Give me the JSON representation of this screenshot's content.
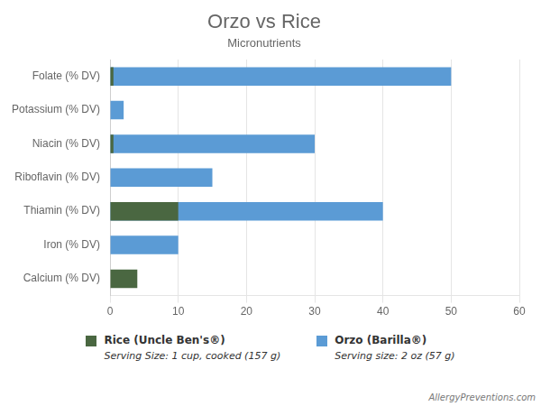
{
  "chart_data": {
    "type": "bar",
    "orientation": "horizontal",
    "title": "Orzo vs Rice",
    "subtitle": "Micronutrients",
    "categories": [
      "Folate (% DV)",
      "Potassium (% DV)",
      "Niacin (% DV)",
      "Riboflavin (% DV)",
      "Thiamin (% DV)",
      "Iron (% DV)",
      "Calcium (% DV)"
    ],
    "series": [
      {
        "name": "Rice (Uncle Ben's®)",
        "color": "#4a6741",
        "values": [
          0.5,
          0,
          0.5,
          0,
          10,
          0,
          4
        ],
        "annotation": "Serving Size: 1 cup, cooked (157 g)"
      },
      {
        "name": "Orzo (Barilla®)",
        "color": "#5b9bd5",
        "values": [
          50,
          2,
          30,
          15,
          40,
          10,
          0
        ],
        "annotation": "Serving size: 2 oz (57 g)"
      }
    ],
    "xlim": [
      0,
      60
    ],
    "xticks": [
      0,
      10,
      20,
      30,
      40,
      50,
      60
    ],
    "grid": true,
    "legend": "bottom",
    "annotations": [
      "AllergyPreventions.com"
    ]
  }
}
